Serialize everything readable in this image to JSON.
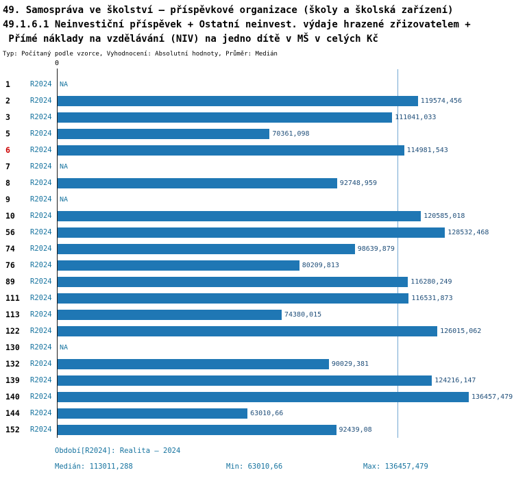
{
  "title": {
    "line1": "49. Samospráva ve školství – příspěvkové organizace (školy a školská zařízení)",
    "line2": "49.1.6.1 Neinvestiční příspěvek + Ostatní neinvest. výdaje hrazené zřizovatelem +",
    "line3": " Přímé náklady na vzdělávání (NIV) na jedno dítě v MŠ v celých Kč",
    "type_line": "Typ: Počítaný podle vzorce, Vyhodnocení: Absolutní hodnoty, Průměr: Medián"
  },
  "chart_data": {
    "type": "bar",
    "orientation": "horizontal",
    "title": "49.1.6.1 Neinvestiční příspěvek + Ostatní neinvest. výdaje hrazené zřizovatelem + Přímé náklady na vzdělávání (NIV) na jedno dítě v MŠ v celých Kč",
    "period_label": "R2024",
    "axis_zero_label": "0",
    "na_label": "NA",
    "xlim": [
      0,
      136457.479
    ],
    "median": 113011.288,
    "min": 63010.66,
    "max": 136457.479,
    "rows": [
      {
        "id": "1",
        "value": null,
        "label": "NA"
      },
      {
        "id": "2",
        "value": 119574.456,
        "label": "119574,456"
      },
      {
        "id": "3",
        "value": 111041.033,
        "label": "111041,033"
      },
      {
        "id": "5",
        "value": 70361.098,
        "label": "70361,098"
      },
      {
        "id": "6",
        "value": 114981.543,
        "label": "114981,543",
        "highlight": true
      },
      {
        "id": "7",
        "value": null,
        "label": "NA"
      },
      {
        "id": "8",
        "value": 92748.959,
        "label": "92748,959"
      },
      {
        "id": "9",
        "value": null,
        "label": "NA"
      },
      {
        "id": "10",
        "value": 120585.018,
        "label": "120585,018"
      },
      {
        "id": "56",
        "value": 128532.468,
        "label": "128532,468"
      },
      {
        "id": "74",
        "value": 98639.879,
        "label": "98639,879"
      },
      {
        "id": "76",
        "value": 80209.813,
        "label": "80209,813"
      },
      {
        "id": "89",
        "value": 116280.249,
        "label": "116280,249"
      },
      {
        "id": "111",
        "value": 116531.873,
        "label": "116531,873"
      },
      {
        "id": "113",
        "value": 74380.015,
        "label": "74380,015"
      },
      {
        "id": "122",
        "value": 126015.062,
        "label": "126015,062"
      },
      {
        "id": "130",
        "value": null,
        "label": "NA"
      },
      {
        "id": "132",
        "value": 90029.381,
        "label": "90029,381"
      },
      {
        "id": "139",
        "value": 124216.147,
        "label": "124216,147"
      },
      {
        "id": "140",
        "value": 136457.479,
        "label": "136457,479"
      },
      {
        "id": "144",
        "value": 63010.66,
        "label": "63010,66"
      },
      {
        "id": "152",
        "value": 92439.08,
        "label": "92439,08"
      }
    ]
  },
  "footer": {
    "period_line": "Období[R2024]: Realita – 2024",
    "median_label": "Medián: 113011,288",
    "min_label": "Min: 63010,66",
    "max_label": "Max: 136457,479"
  },
  "colors": {
    "bar": "#1f77b4",
    "median": "#72a8d2",
    "period": "#16739f",
    "value": "#1f4e79",
    "rownum": "#000000",
    "highlight": "#cc0000",
    "axis": "#1a1a1a",
    "footer": "#16739f"
  }
}
